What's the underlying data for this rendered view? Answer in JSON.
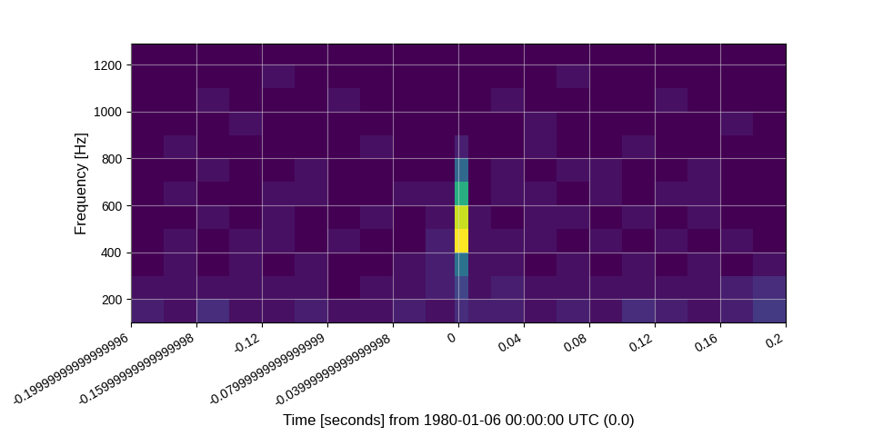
{
  "chart_data": {
    "type": "heatmap",
    "xlabel": "Time [seconds] from 1980-01-06 00:00:00 UTC (0.0)",
    "ylabel": "Frequency [Hz]",
    "x": [
      -0.2,
      -0.18,
      -0.16,
      -0.14,
      -0.12,
      -0.1,
      -0.08,
      -0.06,
      -0.04,
      -0.02,
      -0.002,
      0.006,
      0.02,
      0.04,
      0.06,
      0.08,
      0.1,
      0.12,
      0.14,
      0.16,
      0.18,
      0.2
    ],
    "y": [
      100,
      200,
      300,
      400,
      500,
      600,
      700,
      800,
      900,
      1000,
      1100,
      1200,
      1290
    ],
    "values": [
      [
        3,
        2,
        4,
        2,
        2,
        3,
        2,
        2,
        3,
        2,
        4,
        3,
        3,
        2,
        3,
        2,
        4,
        3,
        2,
        3,
        5
      ],
      [
        2,
        2,
        2,
        2,
        2,
        2,
        1,
        2,
        2,
        3,
        6,
        2,
        3,
        2,
        2,
        2,
        2,
        2,
        2,
        3,
        4
      ],
      [
        1,
        2,
        1,
        2,
        1,
        2,
        1,
        1,
        2,
        3,
        10,
        2,
        2,
        1,
        2,
        1,
        2,
        1,
        2,
        1,
        2
      ],
      [
        1,
        2,
        1,
        2,
        2,
        1,
        2,
        1,
        1,
        3,
        25,
        2,
        2,
        2,
        1,
        2,
        1,
        2,
        1,
        2,
        1
      ],
      [
        1,
        1,
        2,
        1,
        2,
        1,
        1,
        2,
        1,
        2,
        23,
        2,
        1,
        2,
        2,
        1,
        2,
        1,
        2,
        1,
        1
      ],
      [
        1,
        2,
        1,
        1,
        2,
        2,
        1,
        1,
        2,
        2,
        16,
        1,
        2,
        2,
        1,
        2,
        1,
        2,
        2,
        1,
        1
      ],
      [
        1,
        1,
        2,
        1,
        1,
        2,
        1,
        1,
        1,
        1,
        9,
        1,
        2,
        1,
        2,
        2,
        1,
        1,
        2,
        1,
        1
      ],
      [
        1,
        2,
        1,
        1,
        1,
        1,
        1,
        2,
        1,
        1,
        3,
        1,
        1,
        2,
        1,
        1,
        2,
        1,
        1,
        1,
        1
      ],
      [
        1,
        1,
        1,
        2,
        1,
        1,
        1,
        1,
        1,
        1,
        1,
        1,
        1,
        2,
        1,
        1,
        1,
        1,
        1,
        2,
        1
      ],
      [
        1,
        1,
        2,
        1,
        1,
        1,
        2,
        1,
        1,
        1,
        1,
        1,
        2,
        1,
        1,
        1,
        1,
        2,
        1,
        1,
        1
      ],
      [
        1,
        1,
        1,
        1,
        2,
        1,
        1,
        1,
        1,
        1,
        1,
        1,
        1,
        1,
        2,
        1,
        1,
        1,
        1,
        1,
        1
      ],
      [
        1,
        1,
        1,
        1,
        1,
        1,
        1,
        1,
        1,
        1,
        1,
        1,
        1,
        1,
        1,
        1,
        1,
        1,
        1,
        1,
        1
      ]
    ],
    "xlim": [
      -0.2,
      0.2
    ],
    "ylim": [
      100,
      1290
    ],
    "xticks": [
      {
        "value": -0.2,
        "label": "-0.19999999999999996"
      },
      {
        "value": -0.16,
        "label": "-0.15999999999999998"
      },
      -0.12,
      {
        "value": -0.08,
        "label": "-0.07999999999999999"
      },
      {
        "value": -0.04,
        "label": "-0.03999999999999998"
      },
      0,
      0.04,
      0.08,
      0.12,
      0.16,
      0.2
    ],
    "yticks": [
      200,
      400,
      600,
      800,
      1000,
      1200
    ],
    "grid": true
  }
}
